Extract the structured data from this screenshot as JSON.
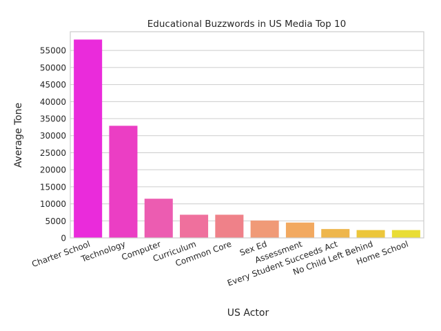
{
  "chart_data": {
    "type": "bar",
    "title": "Educational Buzzwords in US Media Top 10",
    "xlabel": "US Actor",
    "ylabel": "Average Tone",
    "categories": [
      "Charter School",
      "Technology",
      "Computer",
      "Curriculum",
      "Common Core",
      "Sex Ed",
      "Assessment",
      "Every Student Succeeds Act",
      "No Child Left Behind",
      "Home School"
    ],
    "values": [
      58200,
      32900,
      11500,
      6800,
      6800,
      5100,
      4500,
      2600,
      2300,
      2300
    ],
    "colors": [
      "#ea2bdb",
      "#eb3ec4",
      "#ec5cb1",
      "#ef709d",
      "#ef8189",
      "#f09a77",
      "#f2a960",
      "#eeb64c",
      "#ecc63b",
      "#e9dd35"
    ],
    "ylim": [
      0,
      60500
    ],
    "yticks": [
      0,
      5000,
      10000,
      15000,
      20000,
      25000,
      30000,
      35000,
      40000,
      45000,
      50000,
      55000
    ],
    "grid": true,
    "legend": "none"
  }
}
